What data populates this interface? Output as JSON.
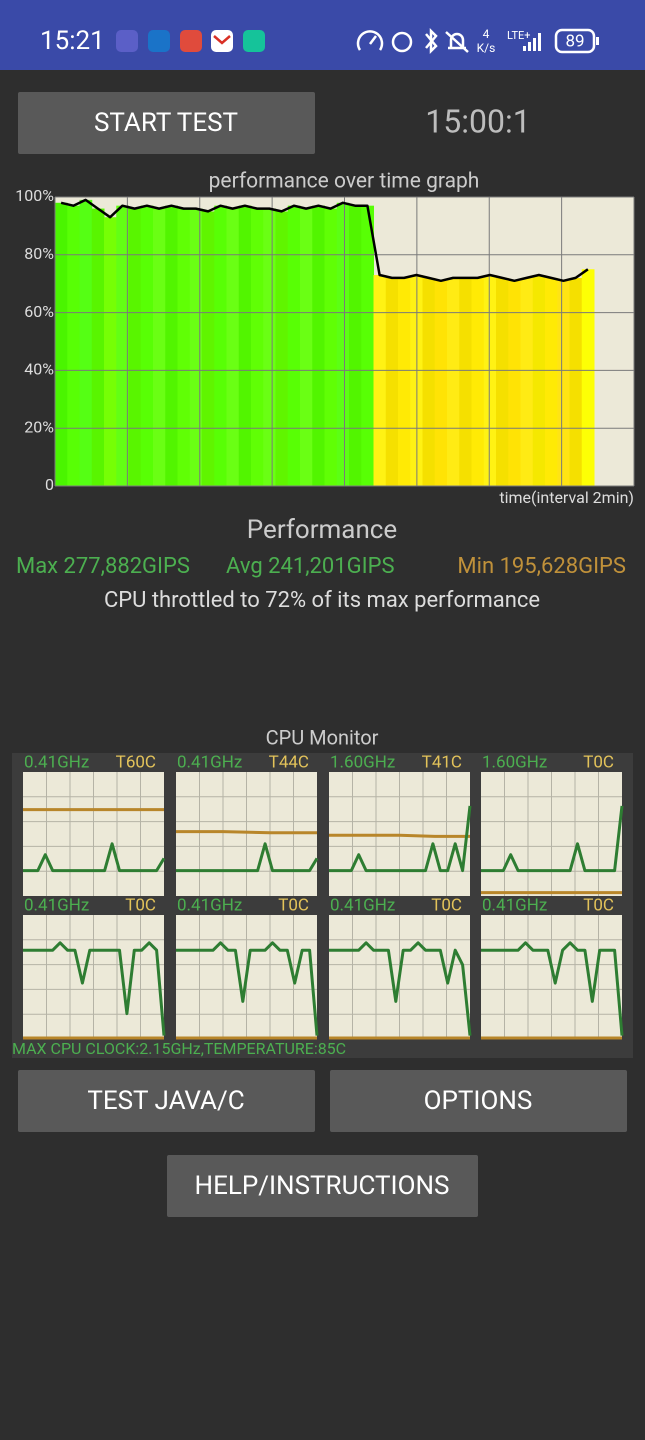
{
  "status_bar": {
    "time": "15:21",
    "net_speed": "4",
    "net_unit": "K/s",
    "network": "LTE+",
    "battery": "89"
  },
  "start_button": "START TEST",
  "timer": "15:00:1",
  "performance_graph": {
    "title": "performance over time graph",
    "x_label": "time(interval 2min)",
    "ylim": [
      0,
      100
    ],
    "yticks": [
      0,
      {
        "value": 20,
        "label": "20%"
      },
      {
        "value": 40,
        "label": "40%"
      },
      {
        "value": 60,
        "label": "60%"
      },
      {
        "value": 80,
        "label": "80%"
      },
      {
        "value": 100,
        "label": "100%"
      }
    ],
    "grid": true,
    "line_color": "#000000",
    "values": [
      98,
      97,
      99,
      96,
      93,
      97,
      96,
      97,
      96,
      97,
      96,
      96,
      95,
      97,
      96,
      97,
      96,
      96,
      95,
      97,
      96,
      97,
      96,
      98,
      97,
      97,
      73,
      72,
      72,
      73,
      72,
      71,
      72,
      72,
      72,
      73,
      72,
      71,
      72,
      73,
      72,
      71,
      72,
      75
    ]
  },
  "performance": {
    "title": "Performance",
    "max": "Max 277,882GIPS",
    "avg": "Avg 241,201GIPS",
    "min": "Min 195,628GIPS",
    "summary": "CPU throttled to 72% of its max performance"
  },
  "cpu_monitor": {
    "title": "CPU Monitor",
    "cores": [
      {
        "freq": "0.41GHz",
        "temp": "T60C",
        "freq_line": [
          20,
          20,
          20,
          33,
          20,
          20,
          20,
          20,
          20,
          20,
          20,
          20,
          42,
          20,
          20,
          20,
          20,
          20,
          20,
          30
        ],
        "temp_line": [
          70,
          70
        ]
      },
      {
        "freq": "0.41GHz",
        "temp": "T44C",
        "freq_line": [
          20,
          20,
          20,
          20,
          20,
          20,
          20,
          20,
          20,
          20,
          20,
          20,
          42,
          20,
          20,
          20,
          20,
          20,
          20,
          30
        ],
        "temp_line": [
          52,
          52,
          51,
          51
        ]
      },
      {
        "freq": "1.60GHz",
        "temp": "T41C",
        "freq_line": [
          20,
          20,
          20,
          20,
          33,
          20,
          20,
          20,
          20,
          20,
          20,
          20,
          20,
          20,
          42,
          20,
          20,
          42,
          20,
          73
        ],
        "temp_line": [
          49,
          49,
          49,
          48,
          48
        ]
      },
      {
        "freq": "1.60GHz",
        "temp": "T0C",
        "freq_line": [
          20,
          20,
          20,
          20,
          33,
          20,
          20,
          20,
          20,
          20,
          20,
          20,
          20,
          42,
          20,
          20,
          20,
          20,
          20,
          73
        ],
        "temp_line": [
          2,
          2
        ]
      },
      {
        "freq": "0.41GHz",
        "temp": "T0C",
        "freq_line": [
          72,
          72,
          72,
          72,
          72,
          78,
          72,
          72,
          45,
          72,
          72,
          72,
          72,
          72,
          20,
          72,
          72,
          78,
          72,
          2
        ],
        "temp_line": [
          0,
          0
        ]
      },
      {
        "freq": "0.41GHz",
        "temp": "T0C",
        "freq_line": [
          72,
          72,
          72,
          72,
          72,
          72,
          78,
          72,
          72,
          30,
          72,
          72,
          72,
          78,
          72,
          72,
          45,
          72,
          72,
          2
        ],
        "temp_line": [
          0,
          0
        ]
      },
      {
        "freq": "0.41GHz",
        "temp": "T0C",
        "freq_line": [
          72,
          72,
          72,
          72,
          72,
          78,
          72,
          72,
          72,
          30,
          72,
          72,
          78,
          72,
          72,
          72,
          45,
          72,
          60,
          2
        ],
        "temp_line": [
          0,
          0
        ]
      },
      {
        "freq": "0.41GHz",
        "temp": "T0C",
        "freq_line": [
          72,
          72,
          72,
          72,
          72,
          72,
          78,
          72,
          72,
          72,
          45,
          72,
          78,
          72,
          72,
          30,
          72,
          72,
          72,
          2
        ],
        "temp_line": [
          0,
          0
        ]
      }
    ],
    "footer": "MAX CPU CLOCK:2.15GHz,TEMPERATURE:85C"
  },
  "buttons": [
    "TEST JAVA/C",
    "OPTIONS",
    "HELP/INSTRUCTIONS"
  ]
}
